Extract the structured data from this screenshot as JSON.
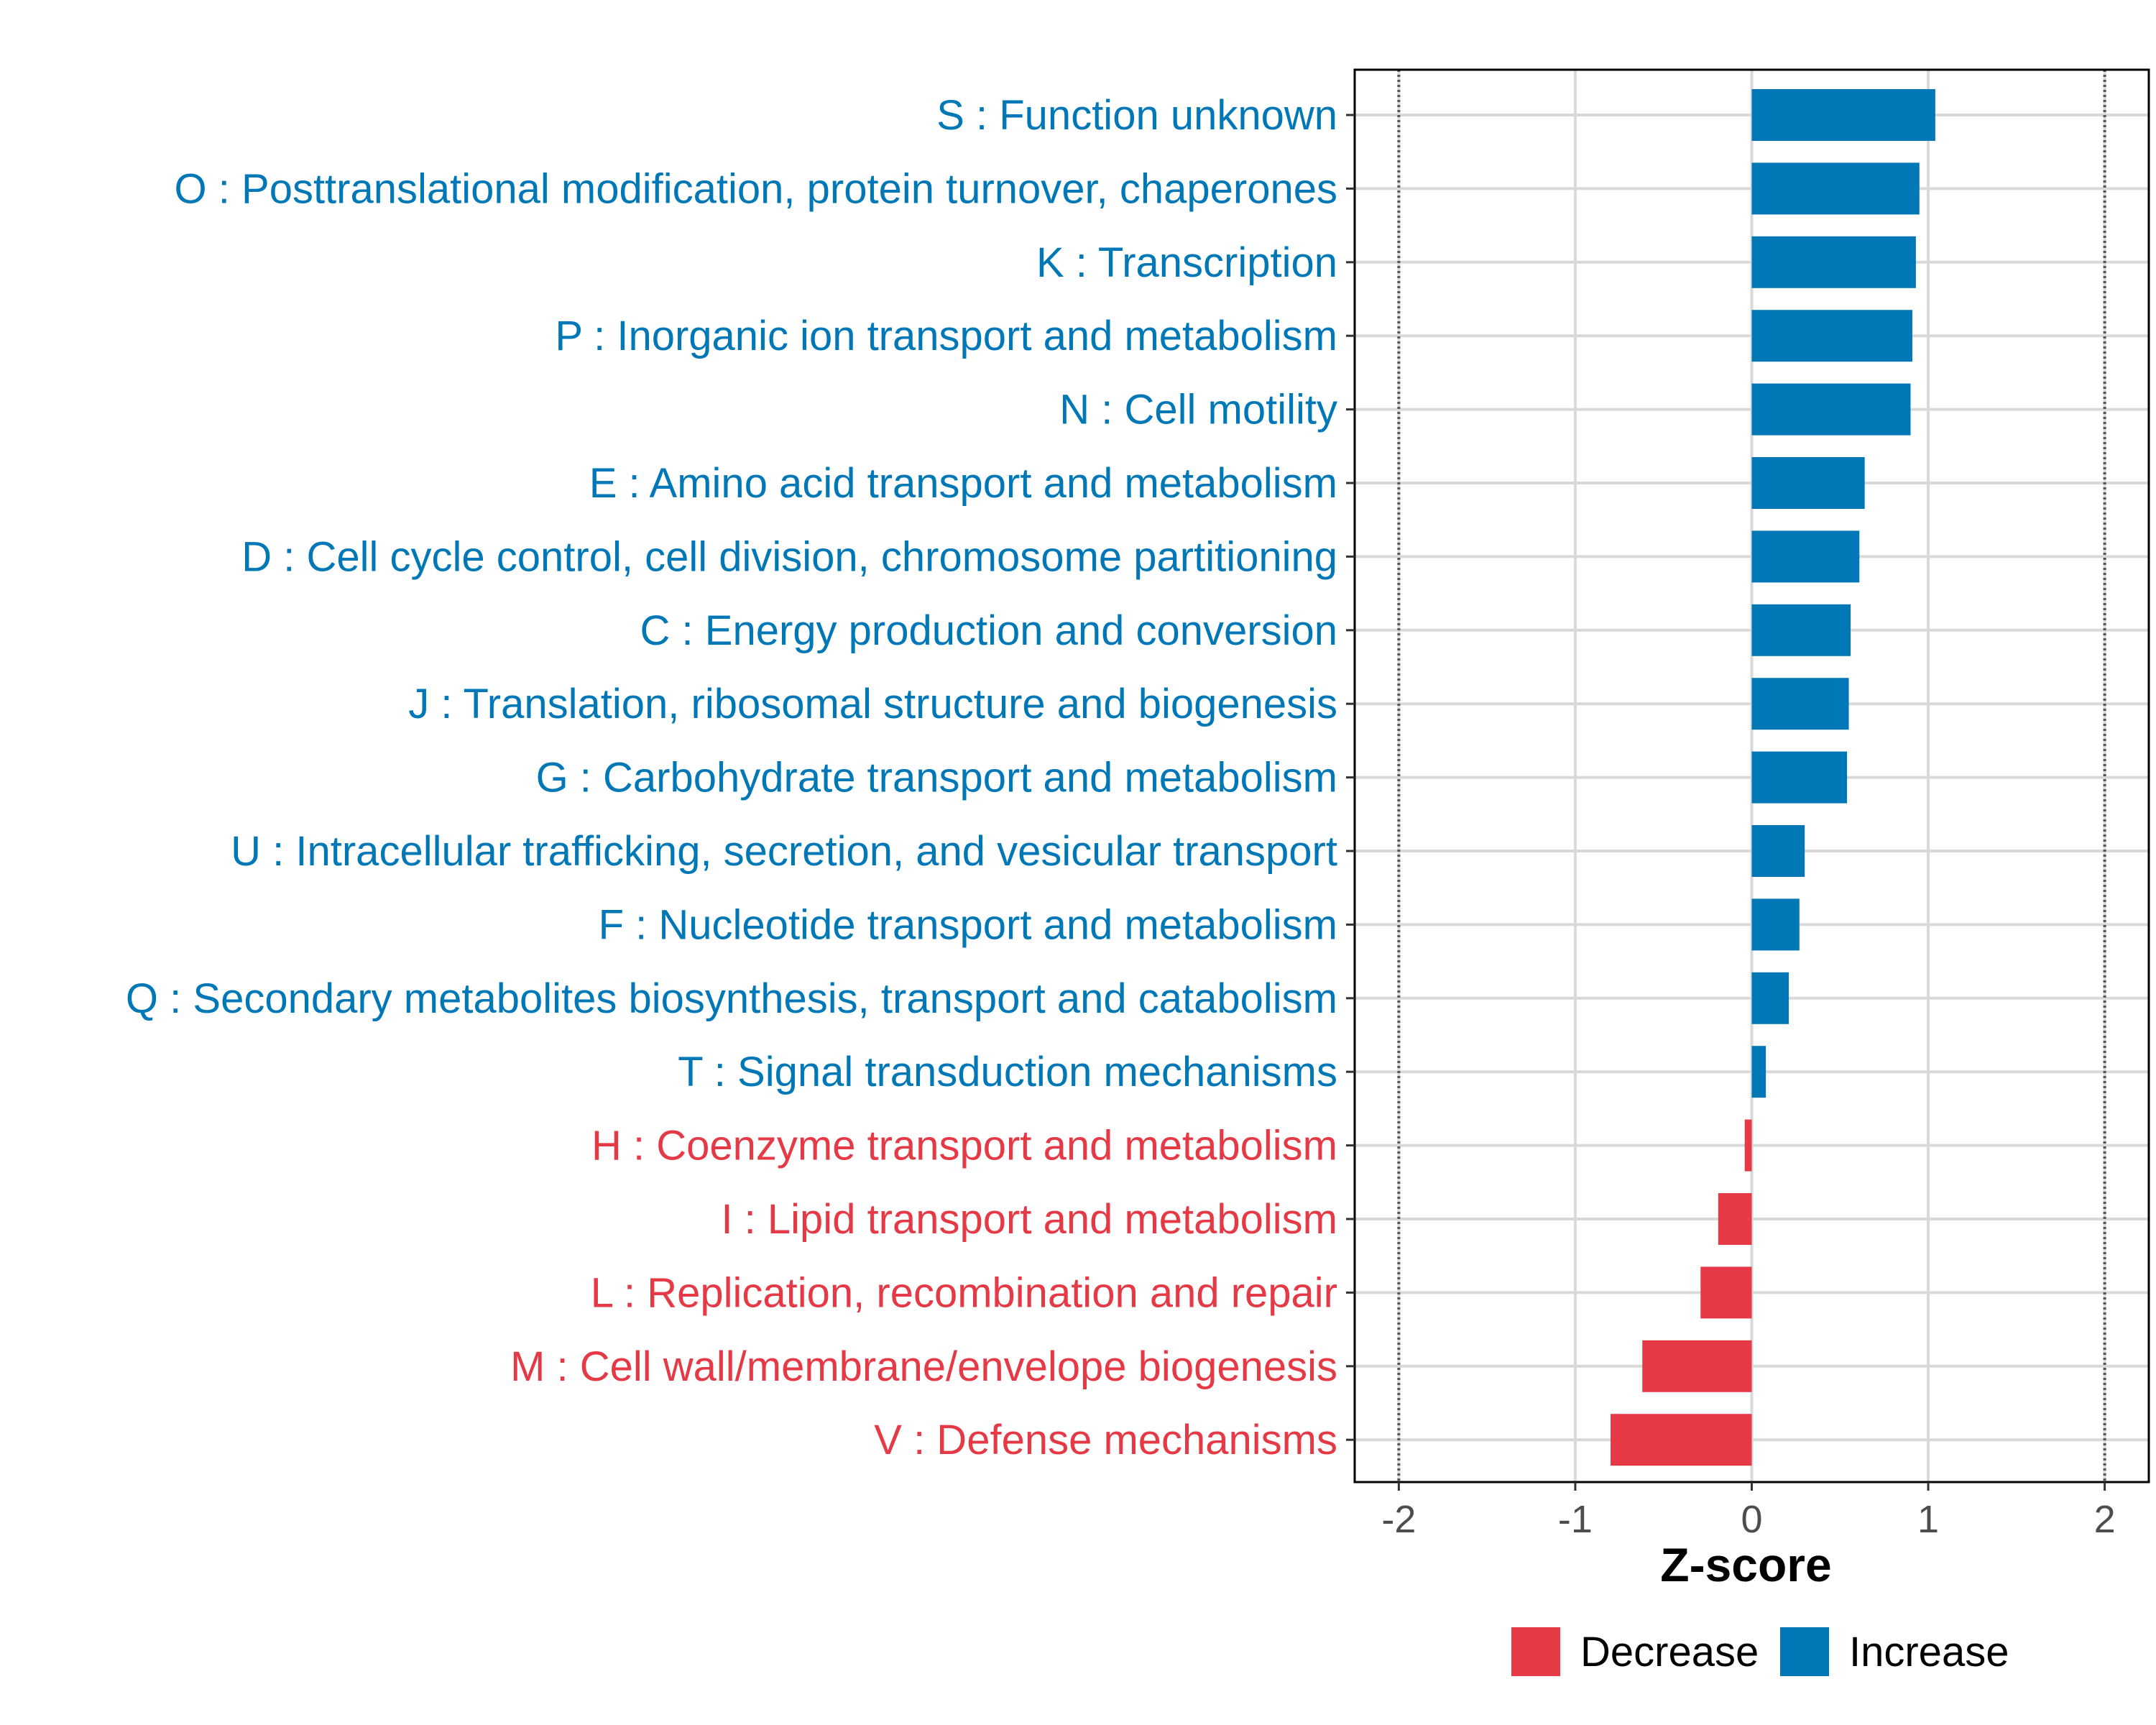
{
  "chart_data": {
    "type": "bar",
    "orientation": "horizontal",
    "xlabel": "Z-score",
    "xlim": [
      -2.25,
      2.25
    ],
    "xticks": [
      "-2",
      "-1",
      "0",
      "1",
      "2"
    ],
    "xtick_values": [
      -2,
      -1,
      0,
      1,
      2
    ],
    "reference_lines": [
      -2,
      2
    ],
    "grid": true,
    "legend_position": "bottom",
    "legend": [
      {
        "name": "Decrease",
        "color": "#E63946"
      },
      {
        "name": "Increase",
        "color": "#0077B6"
      }
    ],
    "bars": [
      {
        "label": "S : Function unknown",
        "value": 1.04,
        "group": "Increase"
      },
      {
        "label": "O : Posttranslational modification, protein turnover, chaperones",
        "value": 0.95,
        "group": "Increase"
      },
      {
        "label": "K : Transcription",
        "value": 0.93,
        "group": "Increase"
      },
      {
        "label": "P : Inorganic ion transport and metabolism",
        "value": 0.91,
        "group": "Increase"
      },
      {
        "label": "N : Cell motility",
        "value": 0.9,
        "group": "Increase"
      },
      {
        "label": "E : Amino acid transport and metabolism",
        "value": 0.64,
        "group": "Increase"
      },
      {
        "label": "D : Cell cycle control, cell division, chromosome partitioning",
        "value": 0.61,
        "group": "Increase"
      },
      {
        "label": "C : Energy production and conversion",
        "value": 0.56,
        "group": "Increase"
      },
      {
        "label": "J : Translation, ribosomal structure and biogenesis",
        "value": 0.55,
        "group": "Increase"
      },
      {
        "label": "G : Carbohydrate transport and metabolism",
        "value": 0.54,
        "group": "Increase"
      },
      {
        "label": "U : Intracellular trafficking, secretion, and vesicular transport",
        "value": 0.3,
        "group": "Increase"
      },
      {
        "label": "F : Nucleotide transport and metabolism",
        "value": 0.27,
        "group": "Increase"
      },
      {
        "label": "Q : Secondary metabolites biosynthesis, transport and catabolism",
        "value": 0.21,
        "group": "Increase"
      },
      {
        "label": "T : Signal transduction mechanisms",
        "value": 0.08,
        "group": "Increase"
      },
      {
        "label": "H : Coenzyme transport and metabolism",
        "value": -0.04,
        "group": "Decrease"
      },
      {
        "label": "I : Lipid transport and metabolism",
        "value": -0.19,
        "group": "Decrease"
      },
      {
        "label": "L : Replication, recombination and repair",
        "value": -0.29,
        "group": "Decrease"
      },
      {
        "label": "M : Cell wall/membrane/envelope biogenesis",
        "value": -0.62,
        "group": "Decrease"
      },
      {
        "label": "V : Defense mechanisms",
        "value": -0.8,
        "group": "Decrease"
      }
    ]
  }
}
